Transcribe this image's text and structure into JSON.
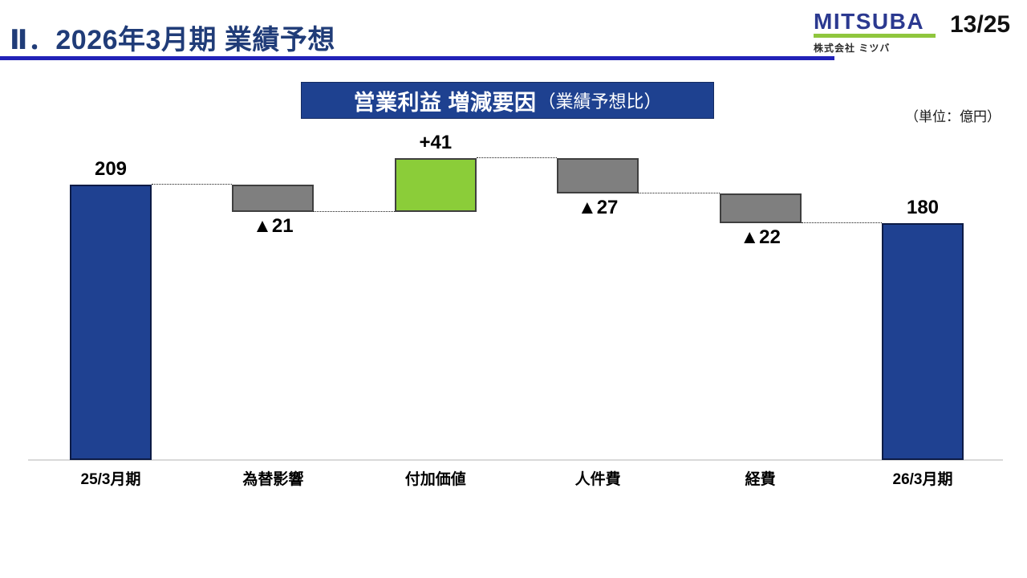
{
  "header": {
    "title": "Ⅱ．2026年3月期 業績予想",
    "page_number": "13/25",
    "logo": {
      "brand": "MITSUBA",
      "company": "株式会社 ミツバ"
    }
  },
  "chart": {
    "title_main": "営業利益 増減要因",
    "title_sub": "（業績予想比）",
    "unit_label": "（単位：億円）"
  },
  "chart_data": {
    "type": "bar",
    "subtype": "waterfall",
    "title": "営業利益 増減要因（業績予想比）",
    "unit": "億円",
    "ylim": [
      0,
      230
    ],
    "grid": false,
    "categories": [
      "25/3月期",
      "為替影響",
      "付加価値",
      "人件費",
      "経費",
      "26/3月期"
    ],
    "steps": [
      {
        "label": "25/3月期",
        "kind": "total",
        "value": 209,
        "display": "209"
      },
      {
        "label": "為替影響",
        "kind": "decrease",
        "value": -21,
        "display": "▲21"
      },
      {
        "label": "付加価値",
        "kind": "increase",
        "value": 41,
        "display": "+41"
      },
      {
        "label": "人件費",
        "kind": "decrease",
        "value": -27,
        "display": "▲27"
      },
      {
        "label": "経費",
        "kind": "decrease",
        "value": -22,
        "display": "▲22"
      },
      {
        "label": "26/3月期",
        "kind": "total",
        "value": 180,
        "display": "180"
      }
    ]
  },
  "colors": {
    "total_bar": "#1F4191",
    "increase_bar": "#8BCD39",
    "decrease_bar": "#7F7F7F",
    "header_text": "#203C78",
    "header_rule": "#2121B8",
    "title_box_bg": "#1E4190",
    "logo_brand": "#2B3990",
    "logo_rule": "#8FC63D"
  }
}
